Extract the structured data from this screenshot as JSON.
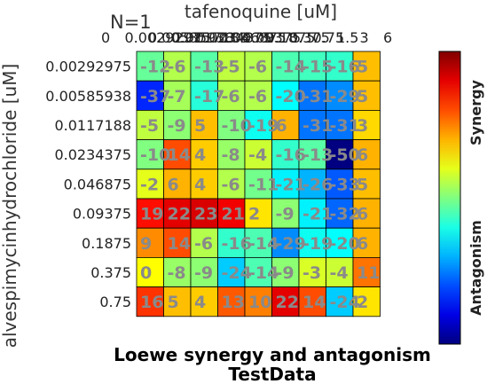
{
  "n_label": "N=1",
  "title_line1": "Loewe synergy and antagonism",
  "title_line2": "TestData",
  "colorbar": {
    "top_label": "Synergy",
    "bottom_label": "Antagonism"
  },
  "chart_data": {
    "type": "heatmap",
    "xlabel": "tafenoquine [uM]",
    "ylabel": "alvespimycinhydrochloride [uM]",
    "x_ticks": [
      "0.00292975",
      "0.00585938",
      "0.0117188",
      "0.0234375",
      "0.046875",
      "0.09375",
      "0.1875",
      "0.375",
      "0.75",
      "1.5",
      "3",
      "6"
    ],
    "x_ticks_visible": [
      "0",
      "0.00292975",
      "0.00585938",
      "0.0117188",
      "0.0234375",
      "0.046875",
      "0.09375",
      "0.1875",
      "0.375",
      "0.75",
      "1.5",
      "3",
      "6"
    ],
    "y_ticks": [
      "0.00292975",
      "0.00585938",
      "0.0117188",
      "0.0234375",
      "0.046875",
      "0.09375",
      "0.1875",
      "0.375",
      "0.75"
    ],
    "values": [
      [
        -12,
        -6,
        -13,
        -5,
        -6,
        -14,
        -15,
        -16,
        5
      ],
      [
        -37,
        -7,
        -17,
        -6,
        -6,
        -20,
        -31,
        -29,
        5
      ],
      [
        -5,
        -9,
        5,
        -10,
        -19,
        6,
        -31,
        -31,
        3
      ],
      [
        -10,
        14,
        4,
        -8,
        -4,
        -16,
        -13,
        -50,
        6
      ],
      [
        -2,
        6,
        4,
        -6,
        -11,
        -21,
        -26,
        -33,
        5
      ],
      [
        19,
        22,
        23,
        21,
        2,
        -9,
        -21,
        -32,
        6
      ],
      [
        9,
        14,
        -6,
        -16,
        -14,
        -29,
        -19,
        -20,
        6
      ],
      [
        0,
        -8,
        -9,
        -24,
        -14,
        -9,
        -3,
        -4,
        11
      ],
      [
        16,
        5,
        4,
        13,
        10,
        22,
        14,
        -24,
        2
      ]
    ],
    "color_range": [
      -50,
      30
    ],
    "colorscale": "jet"
  }
}
